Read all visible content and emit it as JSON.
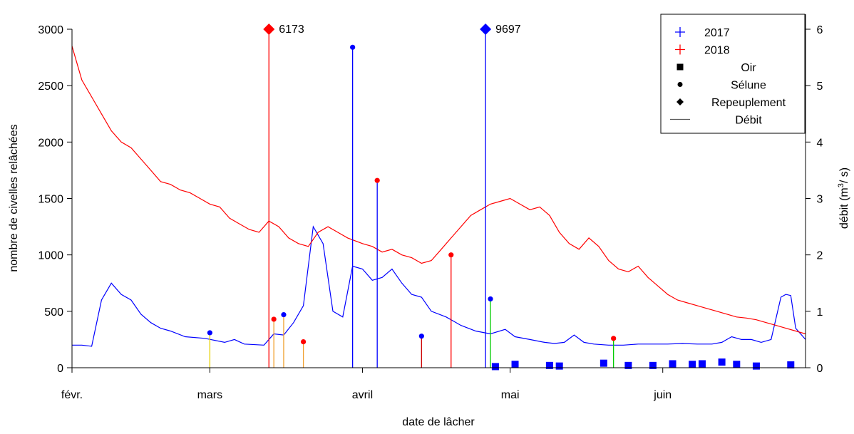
{
  "chart_data": {
    "type": "line",
    "xlabel": "date de lâcher",
    "ylabel_left": "nombre de civelles relâchées",
    "ylabel_right_base": "débit (m",
    "ylabel_right_sup": "3",
    "ylabel_right_tail": "/ s)",
    "x_axis": {
      "type": "date",
      "range": [
        "2017-02-01",
        "2017-06-30"
      ],
      "ticks": [
        {
          "date": "2017-02-01",
          "label": "févr."
        },
        {
          "date": "2017-03-01",
          "label": "mars"
        },
        {
          "date": "2017-04-01",
          "label": "avril"
        },
        {
          "date": "2017-05-01",
          "label": "mai"
        },
        {
          "date": "2017-06-01",
          "label": "juin"
        }
      ]
    },
    "y_left": {
      "range": [
        0,
        3000
      ],
      "ticks": [
        0,
        500,
        1000,
        1500,
        2000,
        2500,
        3000
      ]
    },
    "y_right": {
      "range": [
        0,
        6
      ],
      "ticks": [
        0,
        1,
        2,
        3,
        4,
        5,
        6
      ]
    },
    "colors": {
      "2017": "#0000ff",
      "2018": "#ff0000"
    },
    "legend": {
      "position": "top-right",
      "items": [
        {
          "label": "2017",
          "symbol": "plus",
          "color": "#0000ff"
        },
        {
          "label": "2018",
          "symbol": "plus",
          "color": "#ff0000"
        },
        {
          "label": "Oir",
          "symbol": "square",
          "color": "#000000"
        },
        {
          "label": "Sélune",
          "symbol": "circle",
          "color": "#000000"
        },
        {
          "label": "Repeuplement",
          "symbol": "diamond",
          "color": "#000000"
        },
        {
          "label": "Débit",
          "symbol": "line",
          "color": "#555555"
        }
      ]
    },
    "flow_series": [
      {
        "name": "2017",
        "color": "#0000ff",
        "points": [
          [
            "2017-02-01",
            0.4
          ],
          [
            "2017-02-03",
            0.4
          ],
          [
            "2017-02-05",
            0.38
          ],
          [
            "2017-02-07",
            1.2
          ],
          [
            "2017-02-09",
            1.5
          ],
          [
            "2017-02-11",
            1.3
          ],
          [
            "2017-02-13",
            1.2
          ],
          [
            "2017-02-15",
            0.95
          ],
          [
            "2017-02-17",
            0.8
          ],
          [
            "2017-02-19",
            0.7
          ],
          [
            "2017-02-21",
            0.65
          ],
          [
            "2017-02-24",
            0.55
          ],
          [
            "2017-02-28",
            0.52
          ],
          [
            "2017-03-04",
            0.45
          ],
          [
            "2017-03-06",
            0.5
          ],
          [
            "2017-03-08",
            0.42
          ],
          [
            "2017-03-12",
            0.4
          ],
          [
            "2017-03-14",
            0.6
          ],
          [
            "2017-03-16",
            0.58
          ],
          [
            "2017-03-18",
            0.8
          ],
          [
            "2017-03-20",
            1.1
          ],
          [
            "2017-03-22",
            2.5
          ],
          [
            "2017-03-24",
            2.2
          ],
          [
            "2017-03-26",
            1.0
          ],
          [
            "2017-03-28",
            0.9
          ],
          [
            "2017-03-30",
            1.8
          ],
          [
            "2017-04-01",
            1.75
          ],
          [
            "2017-04-03",
            1.55
          ],
          [
            "2017-04-05",
            1.6
          ],
          [
            "2017-04-07",
            1.75
          ],
          [
            "2017-04-09",
            1.5
          ],
          [
            "2017-04-11",
            1.3
          ],
          [
            "2017-04-13",
            1.25
          ],
          [
            "2017-04-15",
            1.0
          ],
          [
            "2017-04-18",
            0.9
          ],
          [
            "2017-04-21",
            0.75
          ],
          [
            "2017-04-24",
            0.65
          ],
          [
            "2017-04-27",
            0.6
          ],
          [
            "2017-04-30",
            0.68
          ],
          [
            "2017-05-02",
            0.55
          ],
          [
            "2017-05-05",
            0.5
          ],
          [
            "2017-05-08",
            0.45
          ],
          [
            "2017-05-10",
            0.43
          ],
          [
            "2017-05-12",
            0.45
          ],
          [
            "2017-05-14",
            0.58
          ],
          [
            "2017-05-16",
            0.45
          ],
          [
            "2017-05-18",
            0.42
          ],
          [
            "2017-05-21",
            0.4
          ],
          [
            "2017-05-24",
            0.4
          ],
          [
            "2017-05-27",
            0.42
          ],
          [
            "2017-05-30",
            0.42
          ],
          [
            "2017-06-02",
            0.42
          ],
          [
            "2017-06-05",
            0.43
          ],
          [
            "2017-06-08",
            0.42
          ],
          [
            "2017-06-11",
            0.42
          ],
          [
            "2017-06-13",
            0.45
          ],
          [
            "2017-06-15",
            0.55
          ],
          [
            "2017-06-17",
            0.5
          ],
          [
            "2017-06-19",
            0.5
          ],
          [
            "2017-06-21",
            0.45
          ],
          [
            "2017-06-23",
            0.5
          ],
          [
            "2017-06-25",
            1.25
          ],
          [
            "2017-06-26",
            1.3
          ],
          [
            "2017-06-27",
            1.28
          ],
          [
            "2017-06-28",
            0.7
          ],
          [
            "2017-06-30",
            0.5
          ]
        ]
      },
      {
        "name": "2018",
        "color": "#ff0000",
        "points": [
          [
            "2017-02-01",
            5.7
          ],
          [
            "2017-02-03",
            5.1
          ],
          [
            "2017-02-05",
            4.8
          ],
          [
            "2017-02-07",
            4.5
          ],
          [
            "2017-02-09",
            4.2
          ],
          [
            "2017-02-11",
            4.0
          ],
          [
            "2017-02-13",
            3.9
          ],
          [
            "2017-02-15",
            3.7
          ],
          [
            "2017-02-17",
            3.5
          ],
          [
            "2017-02-19",
            3.3
          ],
          [
            "2017-02-21",
            3.25
          ],
          [
            "2017-02-23",
            3.15
          ],
          [
            "2017-02-25",
            3.1
          ],
          [
            "2017-02-27",
            3.0
          ],
          [
            "2017-03-01",
            2.9
          ],
          [
            "2017-03-03",
            2.85
          ],
          [
            "2017-03-05",
            2.65
          ],
          [
            "2017-03-07",
            2.55
          ],
          [
            "2017-03-09",
            2.45
          ],
          [
            "2017-03-11",
            2.4
          ],
          [
            "2017-03-13",
            2.6
          ],
          [
            "2017-03-15",
            2.5
          ],
          [
            "2017-03-17",
            2.3
          ],
          [
            "2017-03-19",
            2.2
          ],
          [
            "2017-03-21",
            2.15
          ],
          [
            "2017-03-23",
            2.4
          ],
          [
            "2017-03-25",
            2.5
          ],
          [
            "2017-03-27",
            2.4
          ],
          [
            "2017-03-29",
            2.3
          ],
          [
            "2017-04-01",
            2.2
          ],
          [
            "2017-04-03",
            2.15
          ],
          [
            "2017-04-05",
            2.05
          ],
          [
            "2017-04-07",
            2.1
          ],
          [
            "2017-04-09",
            2.0
          ],
          [
            "2017-04-11",
            1.95
          ],
          [
            "2017-04-13",
            1.85
          ],
          [
            "2017-04-15",
            1.9
          ],
          [
            "2017-04-17",
            2.1
          ],
          [
            "2017-04-19",
            2.3
          ],
          [
            "2017-04-21",
            2.5
          ],
          [
            "2017-04-23",
            2.7
          ],
          [
            "2017-04-25",
            2.8
          ],
          [
            "2017-04-27",
            2.9
          ],
          [
            "2017-04-29",
            2.95
          ],
          [
            "2017-05-01",
            3.0
          ],
          [
            "2017-05-03",
            2.9
          ],
          [
            "2017-05-05",
            2.8
          ],
          [
            "2017-05-07",
            2.85
          ],
          [
            "2017-05-09",
            2.7
          ],
          [
            "2017-05-11",
            2.4
          ],
          [
            "2017-05-13",
            2.2
          ],
          [
            "2017-05-15",
            2.1
          ],
          [
            "2017-05-17",
            2.3
          ],
          [
            "2017-05-19",
            2.15
          ],
          [
            "2017-05-21",
            1.9
          ],
          [
            "2017-05-23",
            1.75
          ],
          [
            "2017-05-25",
            1.7
          ],
          [
            "2017-05-27",
            1.8
          ],
          [
            "2017-05-29",
            1.6
          ],
          [
            "2017-05-31",
            1.45
          ],
          [
            "2017-06-02",
            1.3
          ],
          [
            "2017-06-04",
            1.2
          ],
          [
            "2017-06-06",
            1.15
          ],
          [
            "2017-06-08",
            1.1
          ],
          [
            "2017-06-10",
            1.05
          ],
          [
            "2017-06-12",
            1.0
          ],
          [
            "2017-06-14",
            0.95
          ],
          [
            "2017-06-16",
            0.9
          ],
          [
            "2017-06-18",
            0.88
          ],
          [
            "2017-06-20",
            0.85
          ],
          [
            "2017-06-22",
            0.8
          ],
          [
            "2017-06-24",
            0.75
          ],
          [
            "2017-06-26",
            0.7
          ],
          [
            "2017-06-28",
            0.65
          ],
          [
            "2017-06-30",
            0.6
          ]
        ]
      }
    ],
    "releases": [
      {
        "date": "2017-03-01",
        "count": 310,
        "site": "Sélune",
        "year": "2017",
        "stem_color": "#e6d000"
      },
      {
        "date": "2017-03-14",
        "count": 430,
        "site": "Sélune",
        "year": "2018",
        "stem_color": "#f0a030"
      },
      {
        "date": "2017-03-16",
        "count": 470,
        "site": "Sélune",
        "year": "2017",
        "stem_color": "#f0a030"
      },
      {
        "date": "2017-03-20",
        "count": 230,
        "site": "Sélune",
        "year": "2018",
        "stem_color": "#f0a030"
      },
      {
        "date": "2017-03-13",
        "count": 3000,
        "site": "Repeuplement",
        "year": "2018",
        "stem_color": "#ff0000",
        "label": "6173"
      },
      {
        "date": "2017-03-30",
        "count": 2840,
        "site": "Sélune",
        "year": "2017",
        "stem_color": "#0000ff"
      },
      {
        "date": "2017-04-04",
        "count": 1660,
        "site": "Sélune",
        "year": "2018",
        "stem_color": "#0000ff"
      },
      {
        "date": "2017-04-13",
        "count": 280,
        "site": "Sélune",
        "year": "2017",
        "stem_color": "#cc0000"
      },
      {
        "date": "2017-04-19",
        "count": 1000,
        "site": "Sélune",
        "year": "2018",
        "stem_color": "#ff0000"
      },
      {
        "date": "2017-04-26",
        "count": 3000,
        "site": "Repeuplement",
        "year": "2017",
        "stem_color": "#0000ff",
        "label": "9697"
      },
      {
        "date": "2017-04-27",
        "count": 610,
        "site": "Sélune",
        "year": "2017",
        "stem_color": "#00cc00"
      },
      {
        "date": "2017-05-22",
        "count": 260,
        "site": "Sélune",
        "year": "2018",
        "stem_color": "#00cc00"
      },
      {
        "date": "2017-04-28",
        "count": 10,
        "site": "Oir",
        "year": "2017"
      },
      {
        "date": "2017-05-02",
        "count": 30,
        "site": "Oir",
        "year": "2017"
      },
      {
        "date": "2017-05-09",
        "count": 20,
        "site": "Oir",
        "year": "2017"
      },
      {
        "date": "2017-05-11",
        "count": 15,
        "site": "Oir",
        "year": "2017"
      },
      {
        "date": "2017-05-20",
        "count": 40,
        "site": "Oir",
        "year": "2017"
      },
      {
        "date": "2017-05-25",
        "count": 20,
        "site": "Oir",
        "year": "2017"
      },
      {
        "date": "2017-05-30",
        "count": 20,
        "site": "Oir",
        "year": "2017"
      },
      {
        "date": "2017-06-03",
        "count": 35,
        "site": "Oir",
        "year": "2017"
      },
      {
        "date": "2017-06-07",
        "count": 30,
        "site": "Oir",
        "year": "2017"
      },
      {
        "date": "2017-06-09",
        "count": 35,
        "site": "Oir",
        "year": "2017"
      },
      {
        "date": "2017-06-13",
        "count": 50,
        "site": "Oir",
        "year": "2017"
      },
      {
        "date": "2017-06-16",
        "count": 30,
        "site": "Oir",
        "year": "2017"
      },
      {
        "date": "2017-06-20",
        "count": 15,
        "site": "Oir",
        "year": "2017"
      },
      {
        "date": "2017-06-27",
        "count": 25,
        "site": "Oir",
        "year": "2017"
      }
    ]
  }
}
